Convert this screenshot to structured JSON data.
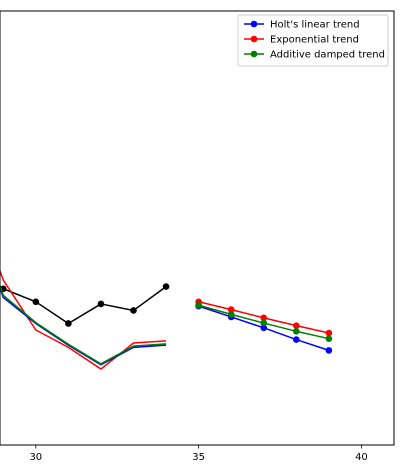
{
  "chart_data": {
    "type": "line",
    "title": "",
    "xlabel": "",
    "ylabel": "",
    "xlim": [
      28.9,
      41.0
    ],
    "ylim": [
      0,
      1
    ],
    "xticks": [
      30,
      35,
      40
    ],
    "grid": false,
    "legend_position": "top-right",
    "series": [
      {
        "name": "",
        "color": "#000000",
        "marker": "circle",
        "x": [
          28,
          29,
          30,
          31,
          32,
          33,
          34
        ],
        "y": [
          0.37,
          0.36,
          0.33,
          0.28,
          0.325,
          0.31,
          0.365
        ]
      },
      {
        "name": "",
        "color": "#ff0000",
        "marker": "none",
        "x": [
          28,
          29,
          30,
          31,
          32,
          33,
          34
        ],
        "y": [
          0.59,
          0.38,
          0.265,
          0.225,
          0.175,
          0.235,
          0.24
        ]
      },
      {
        "name": "",
        "color": "#0000ff",
        "marker": "none",
        "x": [
          28,
          29,
          30,
          31,
          32,
          33,
          34
        ],
        "y": [
          0.56,
          0.34,
          0.28,
          0.23,
          0.185,
          0.225,
          0.23
        ]
      },
      {
        "name": "",
        "color": "#008000",
        "marker": "none",
        "x": [
          28,
          29,
          30,
          31,
          32,
          33,
          34
        ],
        "y": [
          0.565,
          0.345,
          0.282,
          0.232,
          0.187,
          0.228,
          0.233
        ]
      },
      {
        "name": "Holt's linear trend",
        "color": "#0000ff",
        "marker": "circle",
        "x": [
          35,
          36,
          37,
          38,
          39
        ],
        "y": [
          0.32,
          0.295,
          0.27,
          0.243,
          0.218
        ]
      },
      {
        "name": "Exponential trend",
        "color": "#ff0000",
        "marker": "circle",
        "x": [
          35,
          36,
          37,
          38,
          39
        ],
        "y": [
          0.33,
          0.312,
          0.293,
          0.275,
          0.258
        ]
      },
      {
        "name": "Additive damped trend",
        "color": "#008000",
        "marker": "circle",
        "x": [
          35,
          36,
          37,
          38,
          39
        ],
        "y": [
          0.322,
          0.301,
          0.281,
          0.262,
          0.245
        ]
      }
    ],
    "legend": [
      "Holt's linear trend",
      "Exponential trend",
      "Additive damped trend"
    ]
  }
}
